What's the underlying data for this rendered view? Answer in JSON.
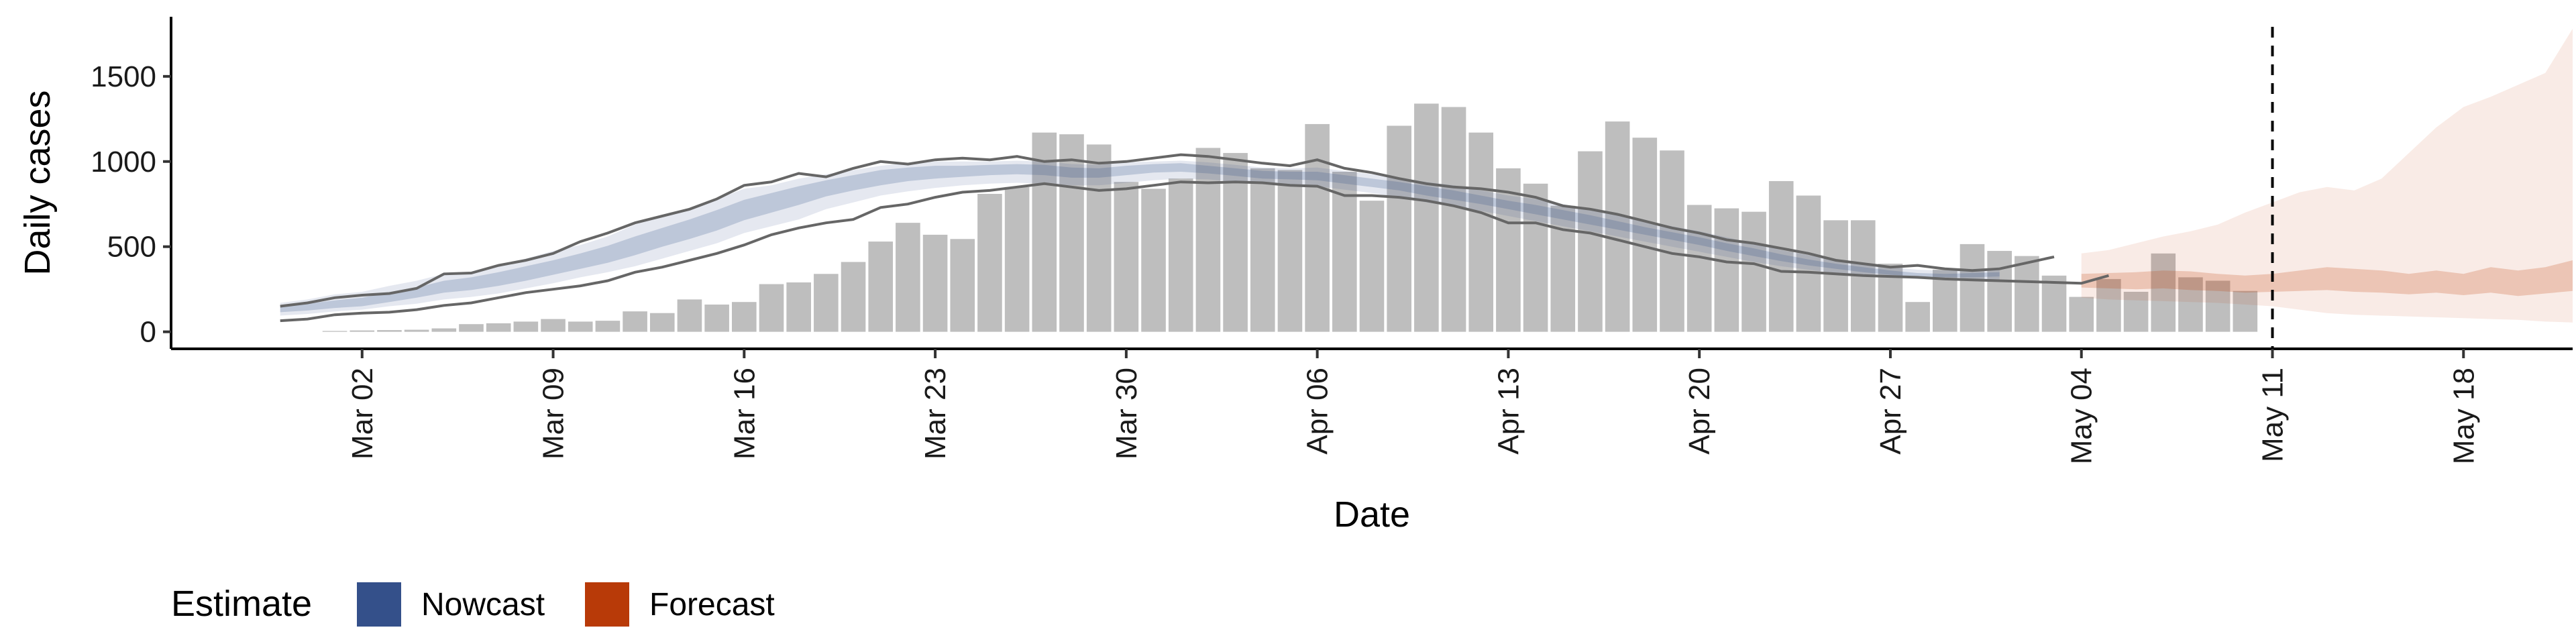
{
  "chart_data": {
    "type": "bar",
    "xlabel": "Date",
    "ylabel": "Daily cases",
    "ylim": [
      -100,
      1850
    ],
    "xlim": [
      "2020-02-24",
      "2020-05-22"
    ],
    "yticks": [
      0,
      500,
      1000,
      1500
    ],
    "xticks": [
      {
        "date": "2020-03-02",
        "label": "Mar 02"
      },
      {
        "date": "2020-03-09",
        "label": "Mar 09"
      },
      {
        "date": "2020-03-16",
        "label": "Mar 16"
      },
      {
        "date": "2020-03-23",
        "label": "Mar 23"
      },
      {
        "date": "2020-03-30",
        "label": "Mar 30"
      },
      {
        "date": "2020-04-06",
        "label": "Apr 06"
      },
      {
        "date": "2020-04-13",
        "label": "Apr 13"
      },
      {
        "date": "2020-04-20",
        "label": "Apr 20"
      },
      {
        "date": "2020-04-27",
        "label": "Apr 27"
      },
      {
        "date": "2020-05-04",
        "label": "May 04"
      },
      {
        "date": "2020-05-11",
        "label": "May 11"
      },
      {
        "date": "2020-05-18",
        "label": "May 18"
      }
    ],
    "bars": {
      "start_date": "2020-03-01",
      "values": [
        5,
        8,
        10,
        12,
        20,
        45,
        50,
        60,
        75,
        60,
        65,
        120,
        110,
        190,
        160,
        175,
        280,
        290,
        340,
        410,
        530,
        640,
        570,
        545,
        810,
        850,
        1170,
        1160,
        1100,
        880,
        840,
        900,
        1080,
        1050,
        960,
        950,
        1220,
        940,
        770,
        1210,
        1340,
        1320,
        1170,
        960,
        870,
        740,
        1060,
        1235,
        1140,
        1065,
        745,
        725,
        705,
        885,
        800,
        655,
        655,
        400,
        175,
        365,
        515,
        475,
        445,
        330,
        205,
        310,
        235,
        460,
        320,
        300,
        240
      ],
      "color": "#bebebe"
    },
    "nowcast_outer_upper": [
      170,
      190,
      220,
      235,
      270,
      300,
      340,
      350,
      390,
      430,
      475,
      510,
      560,
      630,
      680,
      720,
      780,
      840,
      860,
      900,
      925,
      950,
      975,
      990,
      1000,
      1000,
      1000,
      1005,
      1000,
      985,
      980,
      995,
      1000,
      1005,
      995,
      980,
      965,
      960,
      965,
      945,
      925,
      905,
      880,
      860,
      830,
      800,
      780,
      750,
      720,
      690,
      650,
      620,
      590,
      555,
      520,
      480,
      450,
      420,
      400,
      380,
      365,
      360,
      365,
      375
    ],
    "nowcast_outer_lower": [
      95,
      105,
      120,
      130,
      150,
      165,
      190,
      205,
      225,
      255,
      285,
      320,
      350,
      385,
      430,
      475,
      520,
      580,
      620,
      660,
      720,
      760,
      800,
      825,
      845,
      860,
      870,
      875,
      870,
      860,
      860,
      875,
      890,
      900,
      895,
      880,
      870,
      860,
      855,
      835,
      815,
      790,
      760,
      735,
      710,
      680,
      650,
      620,
      590,
      560,
      530,
      500,
      470,
      440,
      410,
      385,
      365,
      345,
      330,
      320,
      310,
      305,
      300,
      300
    ],
    "nowcast_inner_upper": [
      150,
      165,
      185,
      200,
      230,
      260,
      300,
      320,
      350,
      385,
      420,
      460,
      505,
      560,
      610,
      660,
      715,
      775,
      815,
      855,
      890,
      920,
      950,
      965,
      975,
      975,
      980,
      985,
      980,
      965,
      960,
      975,
      985,
      990,
      975,
      960,
      945,
      940,
      940,
      920,
      900,
      880,
      855,
      830,
      800,
      770,
      745,
      715,
      685,
      650,
      615,
      585,
      555,
      520,
      490,
      455,
      425,
      400,
      380,
      360,
      345,
      340,
      345,
      350
    ],
    "nowcast_inner_lower": [
      115,
      125,
      140,
      150,
      175,
      200,
      230,
      245,
      270,
      300,
      335,
      370,
      405,
      450,
      500,
      545,
      595,
      655,
      700,
      745,
      795,
      830,
      860,
      885,
      900,
      910,
      920,
      925,
      920,
      905,
      905,
      920,
      935,
      940,
      930,
      915,
      900,
      895,
      890,
      870,
      850,
      830,
      800,
      775,
      750,
      720,
      690,
      660,
      630,
      600,
      570,
      540,
      510,
      475,
      445,
      415,
      390,
      370,
      350,
      335,
      325,
      320,
      320,
      325
    ],
    "rt_line_upper": [
      150,
      170,
      200,
      215,
      225,
      255,
      340,
      345,
      390,
      420,
      460,
      530,
      580,
      640,
      680,
      720,
      780,
      860,
      880,
      930,
      910,
      960,
      1000,
      985,
      1010,
      1020,
      1010,
      1030,
      1000,
      1010,
      990,
      1000,
      1020,
      1040,
      1030,
      1010,
      990,
      975,
      1010,
      960,
      935,
      900,
      870,
      850,
      840,
      820,
      790,
      740,
      720,
      690,
      650,
      610,
      580,
      540,
      520,
      490,
      460,
      420,
      400,
      380,
      390,
      370,
      360,
      370,
      405,
      440
    ],
    "rt_line_lower": [
      65,
      75,
      100,
      110,
      115,
      130,
      155,
      170,
      200,
      230,
      250,
      270,
      300,
      350,
      380,
      420,
      460,
      510,
      570,
      610,
      640,
      660,
      730,
      750,
      790,
      820,
      830,
      850,
      870,
      850,
      830,
      840,
      860,
      880,
      875,
      880,
      875,
      860,
      855,
      800,
      800,
      790,
      770,
      740,
      700,
      640,
      640,
      600,
      580,
      540,
      500,
      460,
      440,
      410,
      400,
      355,
      350,
      340,
      330,
      325,
      320,
      310,
      305,
      300,
      295,
      290,
      285,
      330
    ],
    "forecast_outer_upper": [
      460,
      480,
      520,
      560,
      590,
      630,
      700,
      760,
      820,
      850,
      830,
      900,
      1050,
      1200,
      1320,
      1380,
      1450,
      1520,
      1780
    ],
    "forecast_outer_lower": [
      200,
      190,
      185,
      180,
      175,
      170,
      160,
      150,
      130,
      110,
      100,
      95,
      90,
      85,
      80,
      75,
      70,
      60,
      55
    ],
    "forecast_inner_upper": [
      340,
      345,
      350,
      360,
      355,
      340,
      330,
      340,
      360,
      380,
      370,
      360,
      340,
      360,
      340,
      380,
      360,
      380,
      420
    ],
    "forecast_inner_lower": [
      260,
      255,
      250,
      255,
      245,
      240,
      230,
      235,
      240,
      245,
      235,
      230,
      220,
      230,
      215,
      230,
      210,
      225,
      240
    ],
    "forecast_start": "2020-05-04",
    "vline_date": "2020-05-11",
    "nowcast_color": "#34508a",
    "forecast_color": "#c13e08"
  },
  "legend": {
    "title": "Estimate",
    "items": [
      {
        "label": "Nowcast",
        "color": "#34508a"
      },
      {
        "label": "Forecast",
        "color": "#b83a08"
      }
    ]
  }
}
